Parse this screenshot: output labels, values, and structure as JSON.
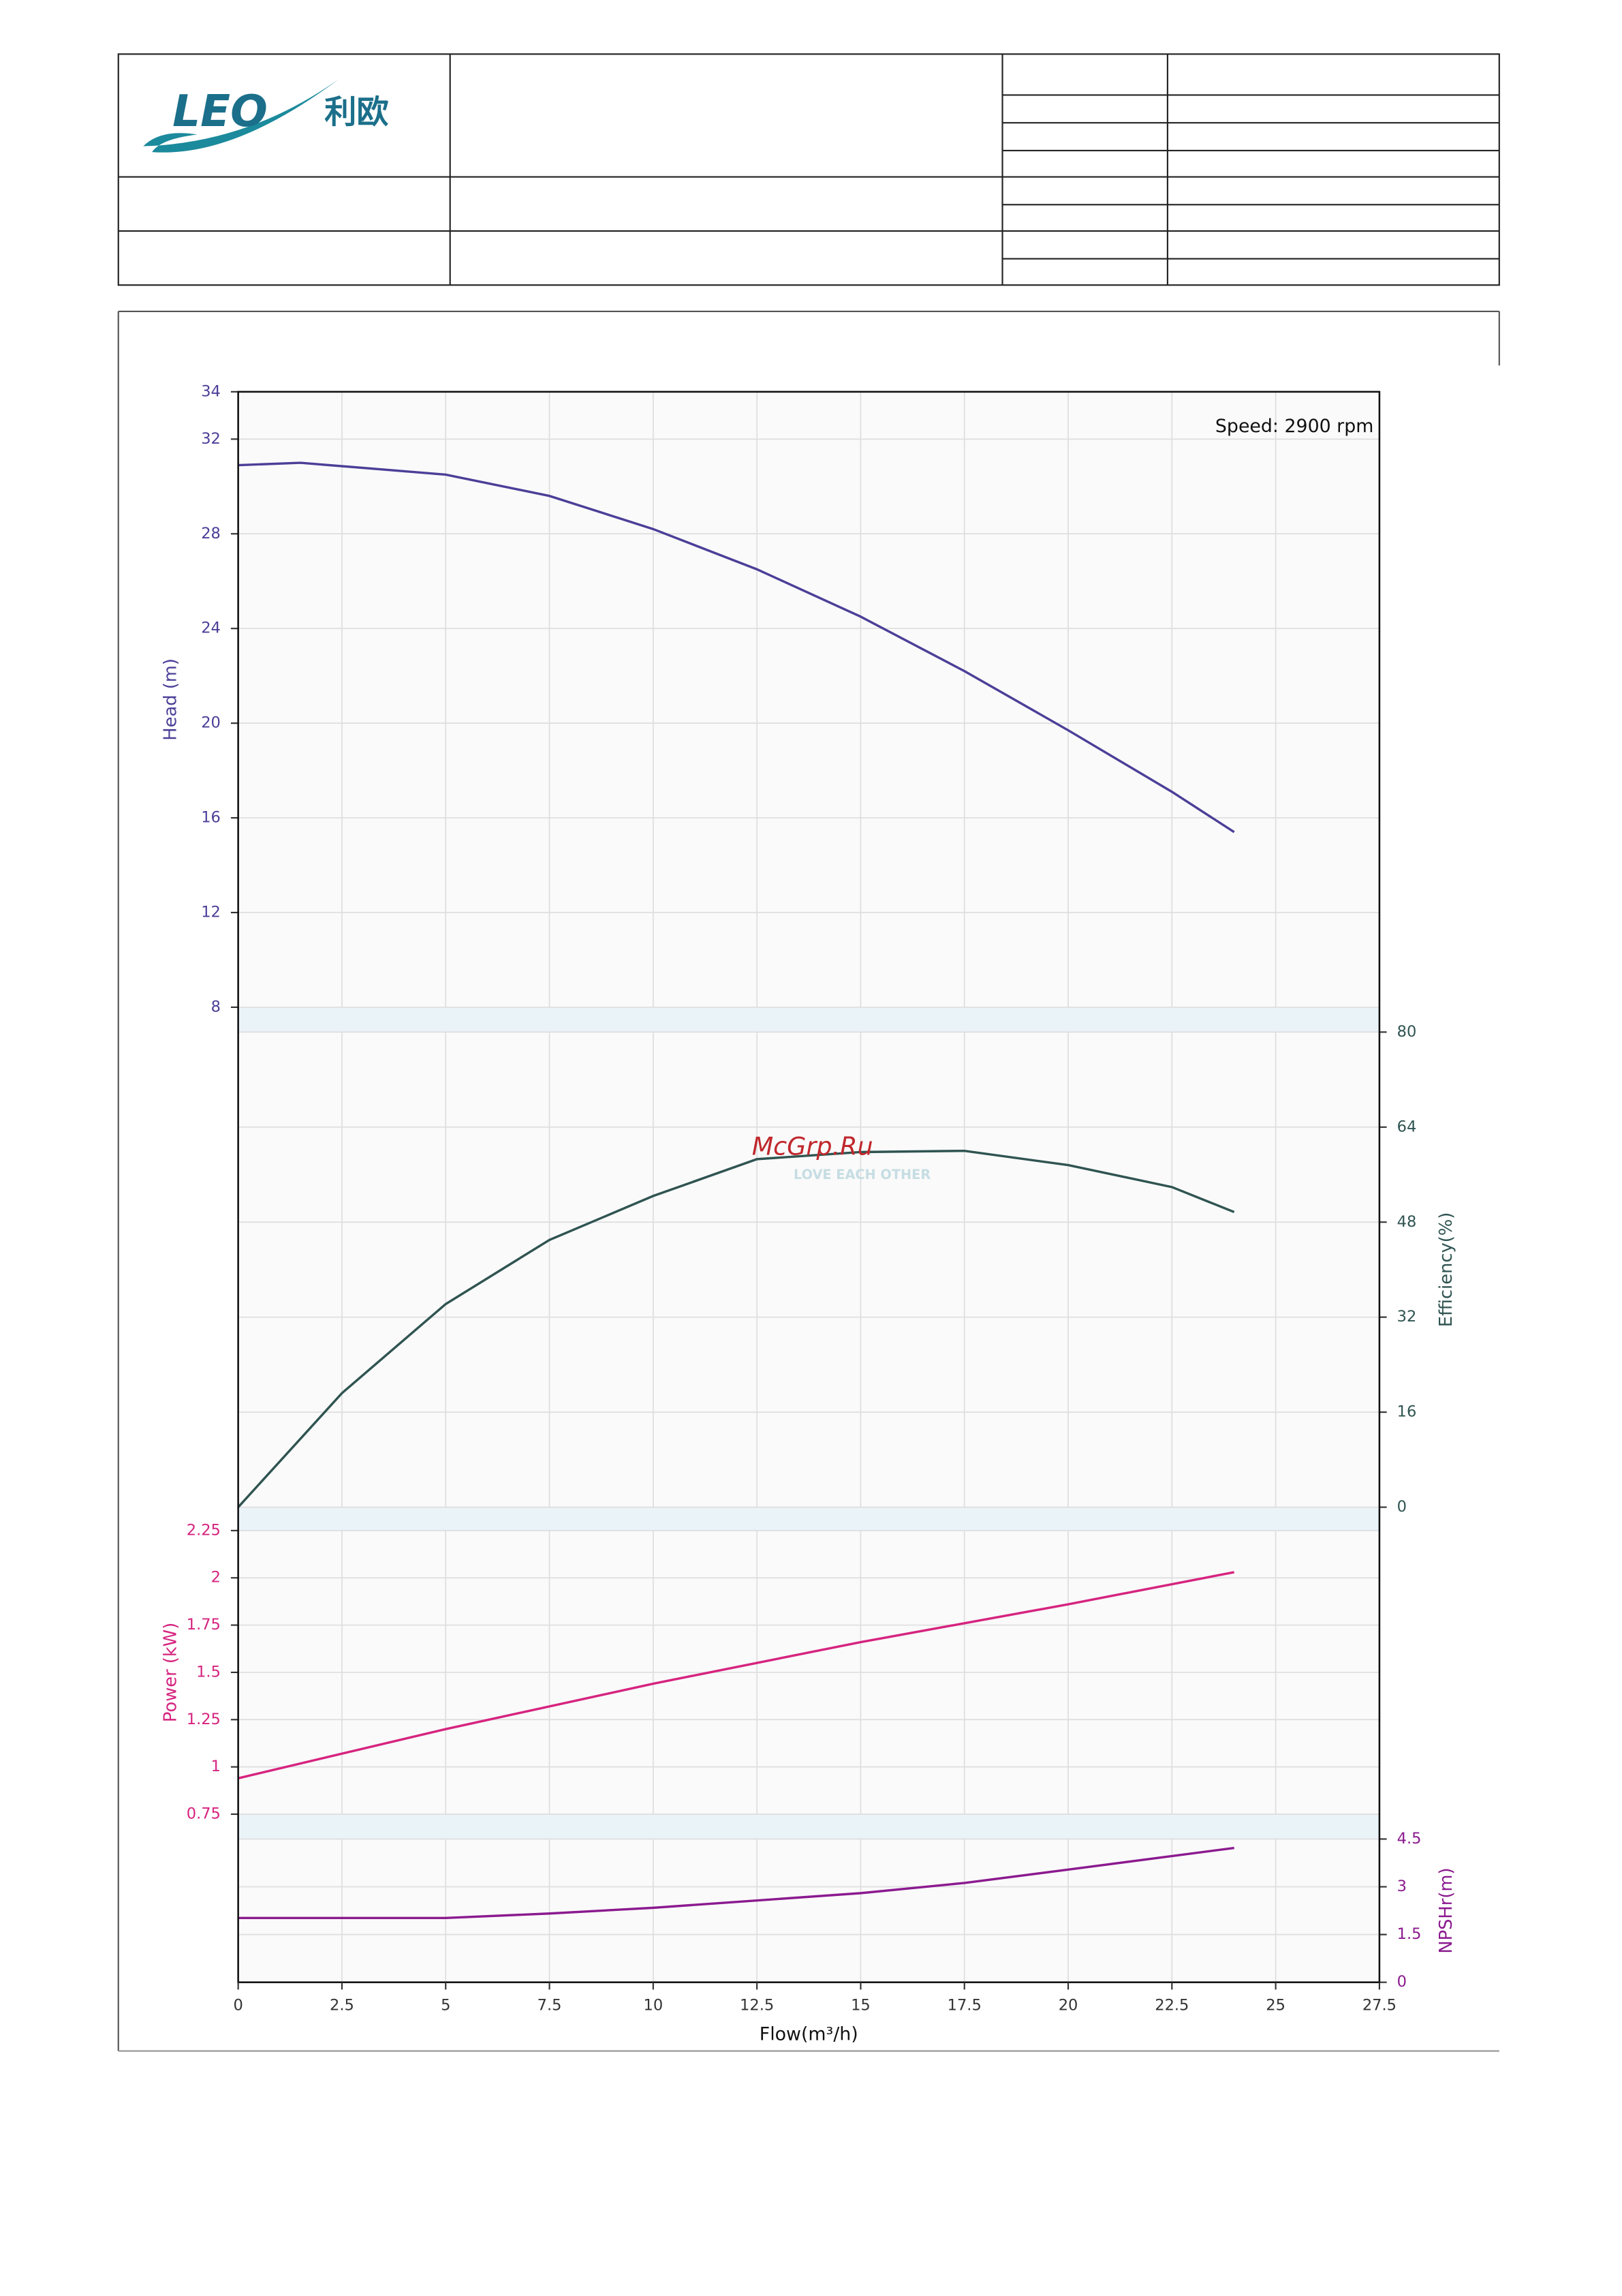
{
  "header": {
    "logo": "LEO",
    "logo_cn": "利欧"
  },
  "watermark": {
    "text": "McGrp.Ru",
    "slogan": "LOVE EACH OTHER"
  },
  "chart_data": [
    {
      "type": "line",
      "ylabel": "Head (m)",
      "annotation": "Speed: 2900 rpm",
      "axis_side": "left",
      "x": [
        0,
        1.5,
        5,
        7.5,
        10,
        12.5,
        15,
        17.5,
        20,
        22.5,
        24
      ],
      "series": [
        {
          "color": "#4b3f98",
          "values": [
            30.9,
            31,
            30.5,
            29.6,
            28.2,
            26.5,
            24.5,
            22.2,
            19.7,
            17.1,
            15.4
          ]
        }
      ],
      "ylim": [
        8,
        34
      ],
      "yticks": [
        8,
        12,
        16,
        20,
        24,
        28,
        32,
        34
      ],
      "grid": true
    },
    {
      "type": "line",
      "ylabel": "Efficiency(%)",
      "axis_side": "right",
      "x": [
        0,
        2.5,
        5,
        7.5,
        10,
        12.5,
        15,
        17.5,
        20,
        22.5,
        24
      ],
      "series": [
        {
          "color": "#2f5451",
          "values": [
            0,
            19.2,
            34.2,
            45,
            52.4,
            58.6,
            59.8,
            60,
            57.6,
            53.9,
            49.7
          ]
        }
      ],
      "ylim": [
        0,
        80
      ],
      "yticks": [
        0,
        16,
        32,
        48,
        64,
        80
      ],
      "grid": true
    },
    {
      "type": "line",
      "ylabel": "Power (kW)",
      "axis_side": "left",
      "x": [
        0,
        5,
        10,
        15,
        20,
        24
      ],
      "series": [
        {
          "color": "#d6247f",
          "values": [
            0.94,
            1.2,
            1.44,
            1.66,
            1.86,
            2.03
          ]
        }
      ],
      "ylim": [
        0.75,
        2.25
      ],
      "yticks": [
        0.75,
        1,
        1.25,
        1.5,
        1.75,
        2,
        2.25
      ],
      "grid": true
    },
    {
      "type": "line",
      "ylabel": "NPSHr(m)",
      "axis_side": "right",
      "xlabel": "Flow(m³/h)",
      "x": [
        0,
        5,
        7.5,
        10,
        15,
        17.5,
        20,
        24
      ],
      "series": [
        {
          "color": "#8b1a8f",
          "values": [
            2.02,
            2.02,
            2.16,
            2.34,
            2.8,
            3.12,
            3.54,
            4.22
          ]
        }
      ],
      "ylim": [
        0,
        4.5
      ],
      "yticks": [
        0,
        1.5,
        3,
        4.5
      ],
      "xlim": [
        0,
        27.5
      ],
      "xticks": [
        0,
        2.5,
        5,
        7.5,
        10,
        12.5,
        15,
        17.5,
        20,
        22.5,
        25,
        27.5
      ],
      "grid": true
    }
  ]
}
